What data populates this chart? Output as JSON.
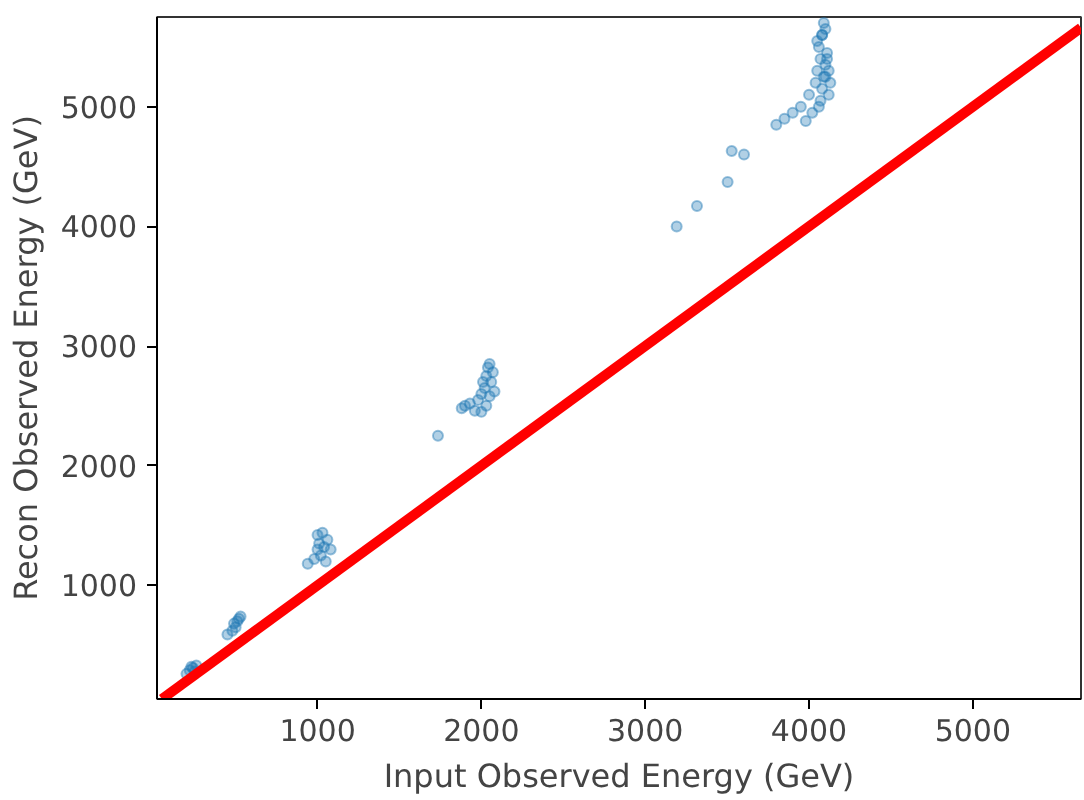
{
  "chart_data": {
    "type": "scatter",
    "xlabel": "Input Observed Energy (GeV)",
    "ylabel": "Recon Observed Energy (GeV)",
    "xlim": [
      20,
      5660
    ],
    "ylim": [
      50,
      5750
    ],
    "xticks": [
      1000,
      2000,
      3000,
      4000,
      5000
    ],
    "yticks": [
      1000,
      2000,
      3000,
      4000,
      5000
    ],
    "grid": false,
    "series": [
      {
        "color": "#1f77b4",
        "marker": "circle",
        "x": [
          200,
          220,
          240,
          250,
          230,
          260,
          450,
          480,
          500,
          510,
          520,
          490,
          530,
          940,
          980,
          1000,
          1010,
          1020,
          1040,
          1060,
          1080,
          1000,
          1030,
          1050,
          1735,
          1880,
          1900,
          1930,
          1960,
          1980,
          2000,
          2010,
          2020,
          2030,
          2040,
          2050,
          2060,
          2070,
          2080,
          2000,
          2030,
          2050,
          3192,
          3316,
          3503,
          3528,
          3603,
          3800,
          3850,
          3900,
          3950,
          3980,
          4000,
          4020,
          4040,
          4050,
          4060,
          4070,
          4080,
          4090,
          4100,
          4110,
          4120,
          4130,
          4060,
          4080,
          4100,
          4120,
          4050,
          4090,
          4110,
          4070,
          4100,
          4080
        ],
        "values": [
          260,
          290,
          310,
          280,
          320,
          330,
          590,
          620,
          650,
          700,
          720,
          680,
          740,
          1180,
          1220,
          1300,
          1350,
          1250,
          1320,
          1380,
          1300,
          1420,
          1440,
          1200,
          2250,
          2480,
          2500,
          2520,
          2460,
          2550,
          2600,
          2700,
          2650,
          2750,
          2820,
          2580,
          2700,
          2780,
          2620,
          2450,
          2500,
          2850,
          4000,
          4170,
          4370,
          4630,
          4600,
          4850,
          4900,
          4950,
          5000,
          4880,
          5100,
          4950,
          5200,
          5300,
          5000,
          5400,
          5150,
          5250,
          5350,
          5450,
          5300,
          5200,
          5500,
          5600,
          5650,
          5100,
          5550,
          5700,
          5400,
          5050,
          5250,
          5600
        ]
      },
      {
        "type": "line",
        "color": "#ff0000",
        "line_style": "solid",
        "x": [
          50,
          5660
        ],
        "values": [
          50,
          5660
        ]
      }
    ]
  }
}
